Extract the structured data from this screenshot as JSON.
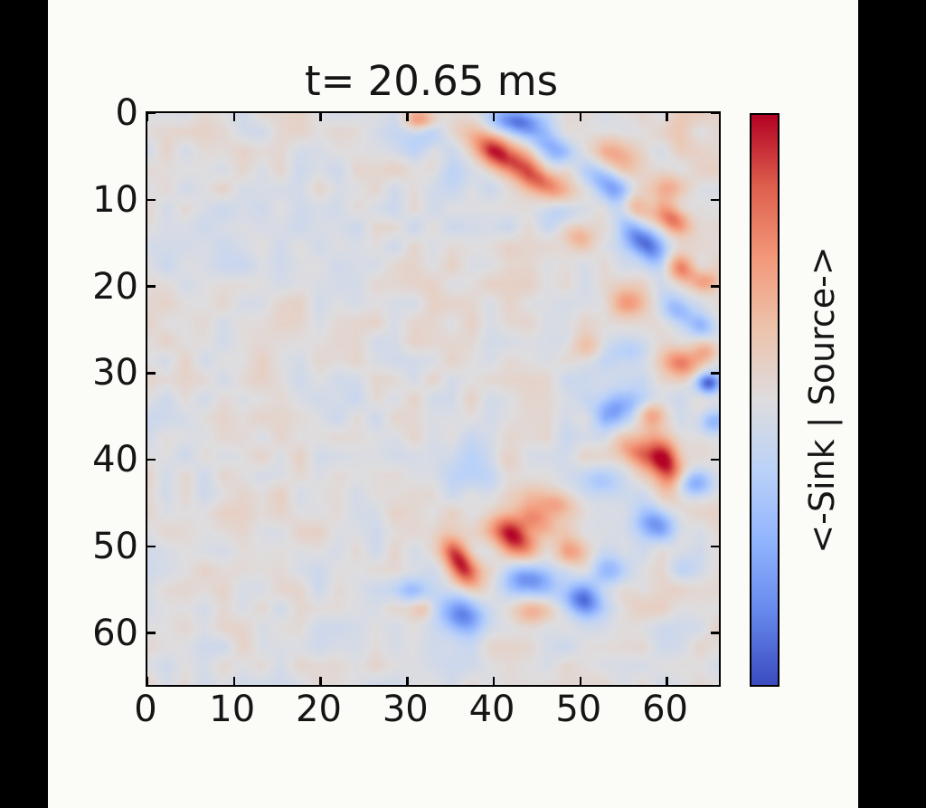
{
  "chart_data": {
    "type": "heatmap",
    "title": "t= 20.65 ms",
    "xlabel": "",
    "ylabel": "",
    "x_ticks": [
      0,
      10,
      20,
      30,
      40,
      50,
      60
    ],
    "y_ticks": [
      0,
      10,
      20,
      30,
      40,
      50,
      60
    ],
    "x_range": [
      0,
      66
    ],
    "y_range": [
      0,
      66
    ],
    "y_axis_inverted": true,
    "grid": false,
    "tick_direction": "in",
    "colorbar": {
      "label": "<-Sink | Source->",
      "position": "right",
      "min_color": "#3b4cc0",
      "mid_color": "#dedddf",
      "max_color": "#b40426"
    },
    "colormap_name": "coolwarm",
    "colormap_stops": [
      [
        -1.0,
        59,
        76,
        192
      ],
      [
        -0.75,
        102,
        136,
        237
      ],
      [
        -0.5,
        145,
        180,
        254
      ],
      [
        -0.25,
        187,
        210,
        248
      ],
      [
        0.0,
        222,
        221,
        223
      ],
      [
        0.25,
        237,
        196,
        173
      ],
      [
        0.5,
        244,
        153,
        122
      ],
      [
        0.75,
        222,
        96,
        77
      ],
      [
        1.0,
        180,
        4,
        38
      ]
    ],
    "field_model": {
      "description": "value field = background 0 + gaussian blobs (x, y, sigma_major, sigma_minor, rot_deg, amplitude; +1=source/red, -1=sink/blue) + low-amplitude smooth noise; arc-shaped wavefront on right half of domain",
      "blob_format": [
        "x",
        "y",
        "sigma_major",
        "sigma_minor",
        "rot_deg",
        "amplitude"
      ],
      "blobs": [
        [
          31.5,
          0.8,
          1.3,
          0.8,
          0,
          0.5
        ],
        [
          31.8,
          3.0,
          2.0,
          1.5,
          0,
          -0.22
        ],
        [
          42.5,
          0.9,
          2.2,
          1.1,
          10,
          -0.85
        ],
        [
          40.8,
          4.8,
          2.8,
          1.3,
          35,
          0.95
        ],
        [
          46.6,
          4.1,
          1.7,
          1.1,
          30,
          -0.6
        ],
        [
          45.8,
          8.0,
          2.2,
          1.1,
          35,
          0.6
        ],
        [
          35.0,
          8.0,
          2.5,
          1.8,
          0,
          -0.15
        ],
        [
          54.5,
          4.8,
          2.0,
          1.4,
          20,
          0.38
        ],
        [
          53.5,
          8.6,
          2.2,
          1.2,
          40,
          -0.72
        ],
        [
          56.3,
          10.8,
          1.4,
          1.0,
          40,
          0.55
        ],
        [
          47.3,
          11.3,
          1.7,
          1.2,
          0,
          -0.28
        ],
        [
          60.6,
          8.6,
          1.5,
          1.2,
          0,
          0.35
        ],
        [
          60.6,
          12.2,
          1.5,
          1.1,
          30,
          0.65
        ],
        [
          57.3,
          14.8,
          2.4,
          1.2,
          45,
          -0.9
        ],
        [
          49.9,
          14.3,
          1.2,
          1.0,
          0,
          0.3
        ],
        [
          61.5,
          17.9,
          1.5,
          1.1,
          30,
          0.65
        ],
        [
          64.8,
          19.5,
          1.2,
          0.9,
          0,
          0.4
        ],
        [
          55.4,
          21.9,
          1.6,
          1.2,
          0,
          0.45
        ],
        [
          61.2,
          22.8,
          1.6,
          1.1,
          40,
          -0.5
        ],
        [
          64.2,
          24.7,
          1.2,
          1.0,
          0,
          -0.35
        ],
        [
          50.8,
          27.0,
          1.4,
          1.1,
          0,
          0.25
        ],
        [
          55.6,
          27.8,
          1.8,
          1.3,
          0,
          -0.33
        ],
        [
          61.6,
          28.9,
          1.6,
          1.2,
          20,
          0.6
        ],
        [
          64.6,
          27.6,
          1.1,
          0.9,
          0,
          0.35
        ],
        [
          64.8,
          31.2,
          1.0,
          0.85,
          0,
          -0.85
        ],
        [
          55.0,
          33.2,
          1.7,
          1.2,
          0,
          -0.4
        ],
        [
          58.1,
          34.8,
          1.3,
          1.0,
          0,
          0.45
        ],
        [
          54.0,
          34.8,
          1.8,
          1.3,
          0,
          -0.5
        ],
        [
          65.2,
          35.8,
          1.2,
          1.0,
          0,
          -0.4
        ],
        [
          56.6,
          39.3,
          1.8,
          1.1,
          25,
          0.5
        ],
        [
          59.8,
          40.2,
          2.5,
          1.3,
          72,
          0.95
        ],
        [
          63.1,
          42.8,
          1.6,
          1.1,
          0,
          -0.6
        ],
        [
          41.6,
          39.9,
          1.4,
          1.1,
          0,
          0.2
        ],
        [
          35.6,
          39.6,
          2.4,
          1.9,
          0,
          -0.17
        ],
        [
          37.6,
          42.6,
          2.2,
          1.7,
          0,
          -0.15
        ],
        [
          52.6,
          42.6,
          1.6,
          1.2,
          0,
          -0.3
        ],
        [
          47.1,
          45.1,
          2.0,
          1.2,
          20,
          0.5
        ],
        [
          44.8,
          46.8,
          1.7,
          1.1,
          30,
          0.45
        ],
        [
          42.3,
          48.8,
          2.2,
          1.4,
          40,
          0.95
        ],
        [
          58.7,
          47.3,
          1.8,
          1.3,
          30,
          -0.65
        ],
        [
          36.2,
          52.0,
          2.3,
          1.1,
          60,
          0.9
        ],
        [
          49.3,
          50.7,
          1.6,
          1.2,
          0,
          0.4
        ],
        [
          43.9,
          53.8,
          1.9,
          1.4,
          10,
          -0.8
        ],
        [
          53.2,
          52.8,
          1.6,
          1.2,
          0,
          -0.45
        ],
        [
          50.2,
          56.2,
          1.8,
          1.3,
          20,
          -0.75
        ],
        [
          36.4,
          57.8,
          1.9,
          1.5,
          20,
          -0.8
        ],
        [
          30.6,
          55.2,
          1.3,
          1.0,
          0,
          -0.3
        ],
        [
          44.3,
          57.6,
          1.5,
          1.1,
          0,
          0.35
        ],
        [
          32.0,
          57.2,
          1.0,
          0.9,
          0,
          0.28
        ],
        [
          56.0,
          57.0,
          2.0,
          1.5,
          0,
          0.15
        ],
        [
          61.9,
          52.2,
          1.8,
          1.4,
          0,
          -0.15
        ],
        [
          60.5,
          2.2,
          2.0,
          1.4,
          0,
          0.18
        ]
      ],
      "noise": {
        "amplitude_fine": 0.13,
        "scale_fine": 2.2,
        "amplitude_coarse": 0.06,
        "scale_coarse": 6.0,
        "seed": 11
      }
    }
  },
  "colors": {
    "letterbox_bg": "#000000",
    "figure_bg": "#fbfbf8",
    "axes_line": "#000000",
    "text": "#151515"
  }
}
